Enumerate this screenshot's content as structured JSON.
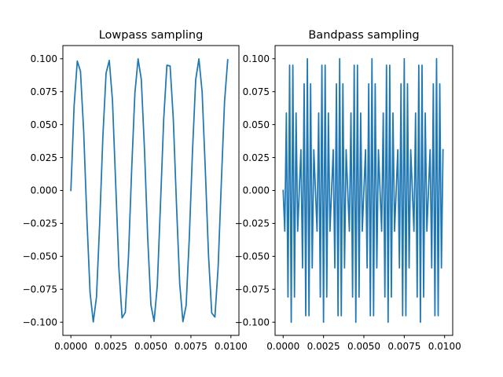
{
  "chart_data": [
    {
      "type": "line",
      "title": "Lowpass sampling",
      "xlabel": "",
      "ylabel": "",
      "xlim": [
        -0.0005,
        0.0105
      ],
      "ylim": [
        -0.11,
        0.11
      ],
      "xticks": [
        0.0,
        0.0025,
        0.005,
        0.0075,
        0.01
      ],
      "xtick_labels": [
        "0.0000",
        "0.0025",
        "0.0050",
        "0.0075",
        "0.0100"
      ],
      "yticks": [
        -0.1,
        -0.075,
        -0.05,
        -0.025,
        0.0,
        0.025,
        0.05,
        0.075,
        0.1
      ],
      "ytick_labels": [
        "−0.100",
        "−0.075",
        "−0.050",
        "−0.025",
        "0.000",
        "0.025",
        "0.050",
        "0.075",
        "0.100"
      ],
      "grid": false,
      "color": "#1f77b4",
      "series": [
        {
          "x": [
            0.0,
            0.0002,
            0.0004,
            0.0006,
            0.0008,
            0.001,
            0.0012,
            0.0014,
            0.0016,
            0.0018,
            0.002,
            0.0022,
            0.0024,
            0.0026,
            0.0028,
            0.003,
            0.0032,
            0.0034,
            0.0036,
            0.0038,
            0.004,
            0.0042,
            0.0044,
            0.0046,
            0.0048,
            0.005,
            0.0052,
            0.0054,
            0.0056,
            0.0058,
            0.006,
            0.0062,
            0.0064,
            0.0066,
            0.0068,
            0.007,
            0.0072,
            0.0074,
            0.0076,
            0.0078,
            0.008,
            0.0082,
            0.0084,
            0.0086,
            0.0088,
            0.009,
            0.0092,
            0.0094,
            0.0096,
            0.0098
          ],
          "y": [
            0.0,
            0.0637,
            0.0982,
            0.0905,
            0.0448,
            -0.0213,
            -0.0777,
            -0.0998,
            -0.0809,
            -0.0249,
            0.0411,
            0.0891,
            0.0987,
            0.0681,
            0.005,
            -0.0588,
            -0.0967,
            -0.0925,
            -0.0499,
            0.0163,
            0.0739,
            0.0999,
            0.0844,
            0.031,
            -0.0357,
            -0.0868,
            -0.0994,
            -0.072,
            -0.0099,
            0.054,
            0.0951,
            0.0945,
            0.0542,
            -0.011,
            -0.0707,
            -0.0996,
            -0.0874,
            -0.036,
            0.0301,
            0.0841,
            0.0999,
            0.075,
            0.0157,
            -0.0493,
            -0.093,
            -0.0961,
            -0.0585,
            0.0058,
            0.067,
            0.0992
          ]
        }
      ]
    },
    {
      "type": "line",
      "title": "Bandpass sampling",
      "xlabel": "",
      "ylabel": "",
      "xlim": [
        -0.0005,
        0.0105
      ],
      "ylim": [
        -0.11,
        0.11
      ],
      "xticks": [
        0.0,
        0.0025,
        0.005,
        0.0075,
        0.01
      ],
      "xtick_labels": [
        "0.0000",
        "0.0025",
        "0.0050",
        "0.0075",
        "0.0100"
      ],
      "yticks": [
        -0.1,
        -0.075,
        -0.05,
        -0.025,
        0.0,
        0.025,
        0.05,
        0.075,
        0.1
      ],
      "ytick_labels": [
        "−0.100",
        "−0.075",
        "−0.050",
        "−0.025",
        "0.000",
        "0.025",
        "0.050",
        "0.075",
        "0.100"
      ],
      "grid": false,
      "color": "#1f77b4",
      "series": [
        {
          "x": [
            0.0,
            0.0001,
            0.0002,
            0.0003,
            0.0004,
            0.0005,
            0.0006,
            0.0007,
            0.0008,
            0.0009,
            0.001,
            0.0011,
            0.0012,
            0.0013,
            0.0014,
            0.0015,
            0.0016,
            0.0017,
            0.0018,
            0.0019,
            0.002,
            0.0021,
            0.0022,
            0.0023,
            0.0024,
            0.0025,
            0.0026,
            0.0027,
            0.0028,
            0.0029,
            0.003,
            0.0031,
            0.0032,
            0.0033,
            0.0034,
            0.0035,
            0.0036,
            0.0037,
            0.0038,
            0.0039,
            0.004,
            0.0041,
            0.0042,
            0.0043,
            0.0044,
            0.0045,
            0.0046,
            0.0047,
            0.0048,
            0.0049,
            0.005,
            0.0051,
            0.0052,
            0.0053,
            0.0054,
            0.0055,
            0.0056,
            0.0057,
            0.0058,
            0.0059,
            0.006,
            0.0061,
            0.0062,
            0.0063,
            0.0064,
            0.0065,
            0.0066,
            0.0067,
            0.0068,
            0.0069,
            0.007,
            0.0071,
            0.0072,
            0.0073,
            0.0074,
            0.0075,
            0.0076,
            0.0077,
            0.0078,
            0.0079,
            0.008,
            0.0081,
            0.0082,
            0.0083,
            0.0084,
            0.0085,
            0.0086,
            0.0087,
            0.0088,
            0.0089,
            0.009,
            0.0091,
            0.0092,
            0.0093,
            0.0094,
            0.0095,
            0.0096,
            0.0097,
            0.0098,
            0.0099
          ],
          "y": [
            0.0,
            -0.0309,
            0.0588,
            -0.0809,
            0.0951,
            -0.1,
            0.0951,
            -0.0809,
            0.0588,
            -0.0309,
            0.0,
            0.0309,
            -0.0588,
            0.0809,
            -0.0951,
            0.1,
            -0.0951,
            0.0809,
            -0.0588,
            0.0309,
            0.0,
            -0.0309,
            0.0588,
            -0.0809,
            0.0951,
            -0.1,
            0.0951,
            -0.0809,
            0.0588,
            -0.0309,
            0.0,
            0.0309,
            -0.0588,
            0.0809,
            -0.0951,
            0.1,
            -0.0951,
            0.0809,
            -0.0588,
            0.0309,
            0.0,
            -0.0309,
            0.0588,
            -0.0809,
            0.0951,
            -0.1,
            0.0951,
            -0.0809,
            0.0588,
            -0.0309,
            0.0,
            0.0309,
            -0.0588,
            0.0809,
            -0.0951,
            0.1,
            -0.0951,
            0.0809,
            -0.0588,
            0.0309,
            0.0,
            -0.0309,
            0.0588,
            -0.0809,
            0.0951,
            -0.1,
            0.0951,
            -0.0809,
            0.0588,
            -0.0309,
            0.0,
            0.0309,
            -0.0588,
            0.0809,
            -0.0951,
            0.1,
            -0.0951,
            0.0809,
            -0.0588,
            0.0309,
            0.0,
            -0.0309,
            0.0588,
            -0.0809,
            0.0951,
            -0.1,
            0.0951,
            -0.0809,
            0.0588,
            -0.0309,
            0.0,
            0.0309,
            -0.0588,
            0.0809,
            -0.0951,
            0.1,
            -0.0951,
            0.0809,
            -0.0588,
            0.0309
          ]
        }
      ]
    }
  ]
}
